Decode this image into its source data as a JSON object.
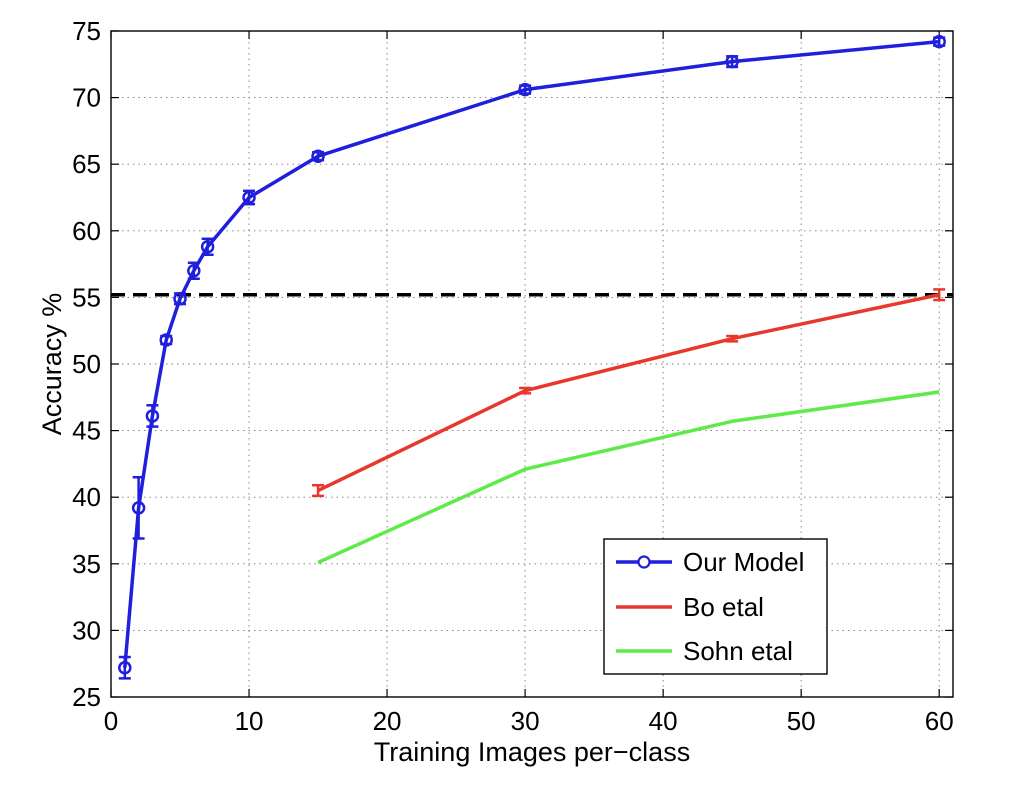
{
  "chart_data": {
    "type": "line",
    "title": "",
    "xlabel": "Training Images per−class",
    "ylabel": "Accuracy %",
    "xlim": [
      0,
      61
    ],
    "ylim": [
      25,
      75
    ],
    "x_ticks": [
      0,
      10,
      20,
      30,
      40,
      50,
      60
    ],
    "y_ticks": [
      25,
      30,
      35,
      40,
      45,
      50,
      55,
      60,
      65,
      70,
      75
    ],
    "x_tick_labels": [
      "0",
      "10",
      "20",
      "30",
      "40",
      "50",
      "60"
    ],
    "y_tick_labels": [
      "25",
      "30",
      "35",
      "40",
      "45",
      "50",
      "55",
      "60",
      "65",
      "70",
      "75"
    ],
    "grid": true,
    "legend_position": "bottom-right",
    "reference_line": {
      "y": 55.2,
      "style": "dashed",
      "color": "#000000"
    },
    "series": [
      {
        "name": "Our Model",
        "color": "#1f1fdd",
        "marker": "circle",
        "points": [
          {
            "x": 1,
            "y": 27.2,
            "err": 0.8
          },
          {
            "x": 2,
            "y": 39.2,
            "err": 2.3
          },
          {
            "x": 3,
            "y": 46.1,
            "err": 0.8
          },
          {
            "x": 4,
            "y": 51.8,
            "err": 0.3
          },
          {
            "x": 5,
            "y": 54.9,
            "err": 0.4
          },
          {
            "x": 6,
            "y": 57.0,
            "err": 0.6
          },
          {
            "x": 7,
            "y": 58.8,
            "err": 0.6
          },
          {
            "x": 10,
            "y": 62.5,
            "err": 0.5
          },
          {
            "x": 15,
            "y": 65.6,
            "err": 0.3
          },
          {
            "x": 30,
            "y": 70.6,
            "err": 0.3
          },
          {
            "x": 45,
            "y": 72.7,
            "err": 0.4
          },
          {
            "x": 60,
            "y": 74.2,
            "err": 0.3
          }
        ]
      },
      {
        "name": "Bo etal",
        "color": "#e8372c",
        "marker": "none",
        "points": [
          {
            "x": 15,
            "y": 40.5,
            "err": 0.4
          },
          {
            "x": 30,
            "y": 48.0,
            "err": 0.2
          },
          {
            "x": 45,
            "y": 51.9,
            "err": 0.2
          },
          {
            "x": 60,
            "y": 55.2,
            "err": 0.4
          }
        ]
      },
      {
        "name": "Sohn etal",
        "color": "#5eea48",
        "marker": "none",
        "points": [
          {
            "x": 15,
            "y": 35.1,
            "err": 0
          },
          {
            "x": 30,
            "y": 42.1,
            "err": 0
          },
          {
            "x": 45,
            "y": 45.7,
            "err": 0
          },
          {
            "x": 60,
            "y": 47.9,
            "err": 0
          }
        ]
      }
    ]
  }
}
